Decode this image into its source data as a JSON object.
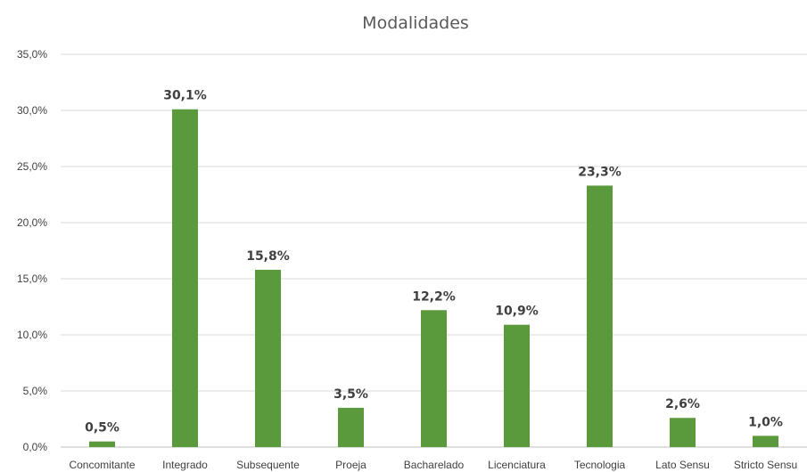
{
  "chart_data": {
    "type": "bar",
    "title": "Modalidades",
    "categories": [
      "Concomitante",
      "Integrado",
      "Subsequente",
      "Proeja",
      "Bacharelado",
      "Licenciatura",
      "Tecnologia",
      "Lato Sensu",
      "Stricto Sensu"
    ],
    "values": [
      0.5,
      30.1,
      15.8,
      3.5,
      12.2,
      10.9,
      23.3,
      2.6,
      1.0
    ],
    "data_labels": [
      "0,5%",
      "30,1%",
      "15,8%",
      "3,5%",
      "12,2%",
      "10,9%",
      "23,3%",
      "2,6%",
      "1,0%"
    ],
    "y_ticks": [
      0,
      5,
      10,
      15,
      20,
      25,
      30,
      35
    ],
    "y_tick_labels": [
      "0,0%",
      "5,0%",
      "10,0%",
      "15,0%",
      "20,0%",
      "25,0%",
      "30,0%",
      "35,0%"
    ],
    "ylim": [
      0,
      35
    ],
    "xlabel": "",
    "ylabel": "",
    "grid": true,
    "legend": "none",
    "bar_color": "#5b9a3c"
  }
}
